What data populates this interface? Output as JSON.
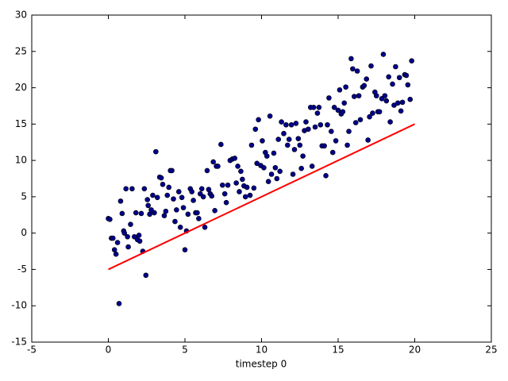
{
  "chart_data": {
    "type": "scatter",
    "xlabel": "timestep 0",
    "xlim": [
      -5,
      25
    ],
    "xticks": [
      -5,
      0,
      5,
      10,
      15,
      20,
      25
    ],
    "ylim": [
      -15,
      30
    ],
    "yticks": [
      -15,
      -10,
      -5,
      0,
      5,
      10,
      15,
      20,
      25,
      30
    ],
    "grid": false,
    "series": [
      {
        "type": "scatter",
        "color": "#00008b",
        "x": [
          0.0,
          0.1,
          0.2,
          0.3,
          0.4,
          0.5,
          0.6,
          0.7,
          0.8,
          0.9,
          1.0,
          1.05,
          1.15,
          1.25,
          1.3,
          1.45,
          1.55,
          1.7,
          1.8,
          1.9,
          2.0,
          2.05,
          2.15,
          2.25,
          2.35,
          2.45,
          2.55,
          2.6,
          2.7,
          2.8,
          2.9,
          3.0,
          3.1,
          3.2,
          3.35,
          3.45,
          3.55,
          3.65,
          3.75,
          3.85,
          3.95,
          4.05,
          4.15,
          4.25,
          4.35,
          4.45,
          4.6,
          4.7,
          4.8,
          4.9,
          5.0,
          5.1,
          5.2,
          5.35,
          5.45,
          5.55,
          5.7,
          5.8,
          5.9,
          6.0,
          6.1,
          6.2,
          6.3,
          6.45,
          6.55,
          6.65,
          6.75,
          6.85,
          6.95,
          7.05,
          7.15,
          7.35,
          7.45,
          7.6,
          7.7,
          7.8,
          7.95,
          8.1,
          8.25,
          8.35,
          8.45,
          8.55,
          8.65,
          8.75,
          8.85,
          8.95,
          9.05,
          9.25,
          9.35,
          9.5,
          9.6,
          9.7,
          9.8,
          9.95,
          10.05,
          10.15,
          10.25,
          10.35,
          10.45,
          10.55,
          10.65,
          10.8,
          10.9,
          11.0,
          11.1,
          11.2,
          11.3,
          11.45,
          11.6,
          11.7,
          11.8,
          11.95,
          12.05,
          12.15,
          12.25,
          12.4,
          12.5,
          12.6,
          12.7,
          12.8,
          12.9,
          13.05,
          13.2,
          13.3,
          13.4,
          13.5,
          13.65,
          13.75,
          13.85,
          13.95,
          14.1,
          14.2,
          14.3,
          14.4,
          14.55,
          14.65,
          14.75,
          14.85,
          15.0,
          15.1,
          15.2,
          15.3,
          15.4,
          15.5,
          15.6,
          15.7,
          15.85,
          15.95,
          16.05,
          16.15,
          16.25,
          16.35,
          16.45,
          16.6,
          16.7,
          16.85,
          16.95,
          17.05,
          17.15,
          17.25,
          17.4,
          17.5,
          17.6,
          17.7,
          17.85,
          17.95,
          18.05,
          18.15,
          18.3,
          18.4,
          18.55,
          18.65,
          18.75,
          18.9,
          19.0,
          19.1,
          19.2,
          19.35,
          19.45,
          19.55,
          19.7,
          19.8
        ],
        "values": [
          2.0,
          1.9,
          -0.7,
          -0.7,
          -2.3,
          -2.9,
          -1.3,
          -9.7,
          4.4,
          2.7,
          0.3,
          0.0,
          6.1,
          -0.5,
          -1.9,
          1.2,
          6.1,
          -0.5,
          2.8,
          -0.9,
          -0.3,
          -1.1,
          2.7,
          -2.5,
          6.1,
          -5.8,
          4.6,
          3.8,
          2.6,
          3.2,
          5.2,
          2.8,
          11.2,
          4.9,
          7.7,
          7.6,
          6.7,
          2.4,
          3.0,
          5.2,
          6.3,
          8.6,
          8.6,
          4.7,
          1.6,
          3.2,
          5.7,
          0.8,
          4.9,
          3.5,
          -2.3,
          0.3,
          2.6,
          6.1,
          5.7,
          4.5,
          2.8,
          2.8,
          2.0,
          5.4,
          6.1,
          5.0,
          0.8,
          8.6,
          6.0,
          5.4,
          5.1,
          9.8,
          3.1,
          9.2,
          9.2,
          12.2,
          6.6,
          5.4,
          4.2,
          6.6,
          10.0,
          10.2,
          10.3,
          6.9,
          9.2,
          5.7,
          8.5,
          7.4,
          6.5,
          5.0,
          6.3,
          5.2,
          12.1,
          6.2,
          14.3,
          9.6,
          15.6,
          9.3,
          12.7,
          9.0,
          11.1,
          10.6,
          7.1,
          16.1,
          8.1,
          11.0,
          9.0,
          7.5,
          12.9,
          8.5,
          15.3,
          13.7,
          14.9,
          12.1,
          12.9,
          14.9,
          8.1,
          11.5,
          15.1,
          13.0,
          12.1,
          8.9,
          10.6,
          14.1,
          15.3,
          14.3,
          17.3,
          9.2,
          17.3,
          14.6,
          16.5,
          17.3,
          14.9,
          12.0,
          12.0,
          7.9,
          14.9,
          18.6,
          14.0,
          11.1,
          17.3,
          12.7,
          16.9,
          19.7,
          16.4,
          16.7,
          17.9,
          20.1,
          12.1,
          14.0,
          24.0,
          22.6,
          18.8,
          15.2,
          22.3,
          18.9,
          15.6,
          20.1,
          20.3,
          21.2,
          12.8,
          16.0,
          23.0,
          16.5,
          19.4,
          18.9,
          16.7,
          16.7,
          18.5,
          24.6,
          18.9,
          18.2,
          21.5,
          15.3,
          20.5,
          17.6,
          22.9,
          17.9,
          21.4,
          16.8,
          18.0,
          21.8,
          21.7,
          20.4,
          18.4,
          23.7
        ]
      },
      {
        "type": "line",
        "color": "#ff0000",
        "x": [
          0,
          20
        ],
        "values": [
          -5,
          15
        ]
      }
    ]
  }
}
